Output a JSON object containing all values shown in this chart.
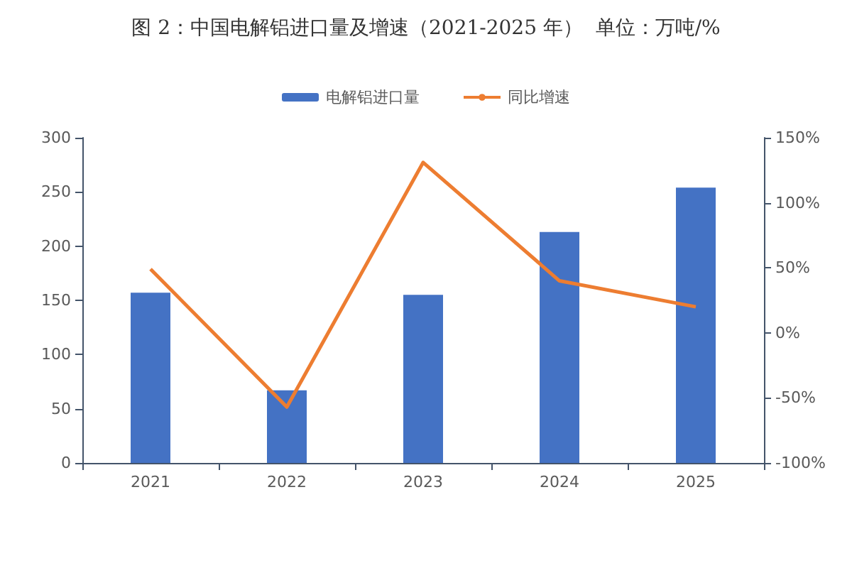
{
  "chart_data": {
    "type": "bar",
    "title": "图 2：中国电解铝进口量及增速（2021-2025 年）  单位：万吨/%",
    "categories": [
      "2021",
      "2022",
      "2023",
      "2024",
      "2025"
    ],
    "series": [
      {
        "name": "电解铝进口量",
        "color": "#4472c4",
        "values": [
          157,
          67,
          155,
          213,
          254
        ]
      },
      {
        "name": "同比增速",
        "type": "line",
        "axis": "y2",
        "color": "#ed7d31",
        "values": [
          49,
          -57,
          131,
          40,
          20
        ]
      }
    ],
    "ylim": [
      0,
      300
    ],
    "yticks": [
      0,
      50,
      100,
      150,
      200,
      250,
      300
    ],
    "y2lim": [
      -100,
      150
    ],
    "y2ticks": [
      {
        "value": -100,
        "label": "-100%"
      },
      {
        "value": -50,
        "label": "-50%"
      },
      {
        "value": 0,
        "label": "0%"
      },
      {
        "value": 50,
        "label": "50%"
      },
      {
        "value": 100,
        "label": "100%"
      },
      {
        "value": 150,
        "label": "150%"
      }
    ],
    "grid": false,
    "legend": "top",
    "marker": "none"
  }
}
